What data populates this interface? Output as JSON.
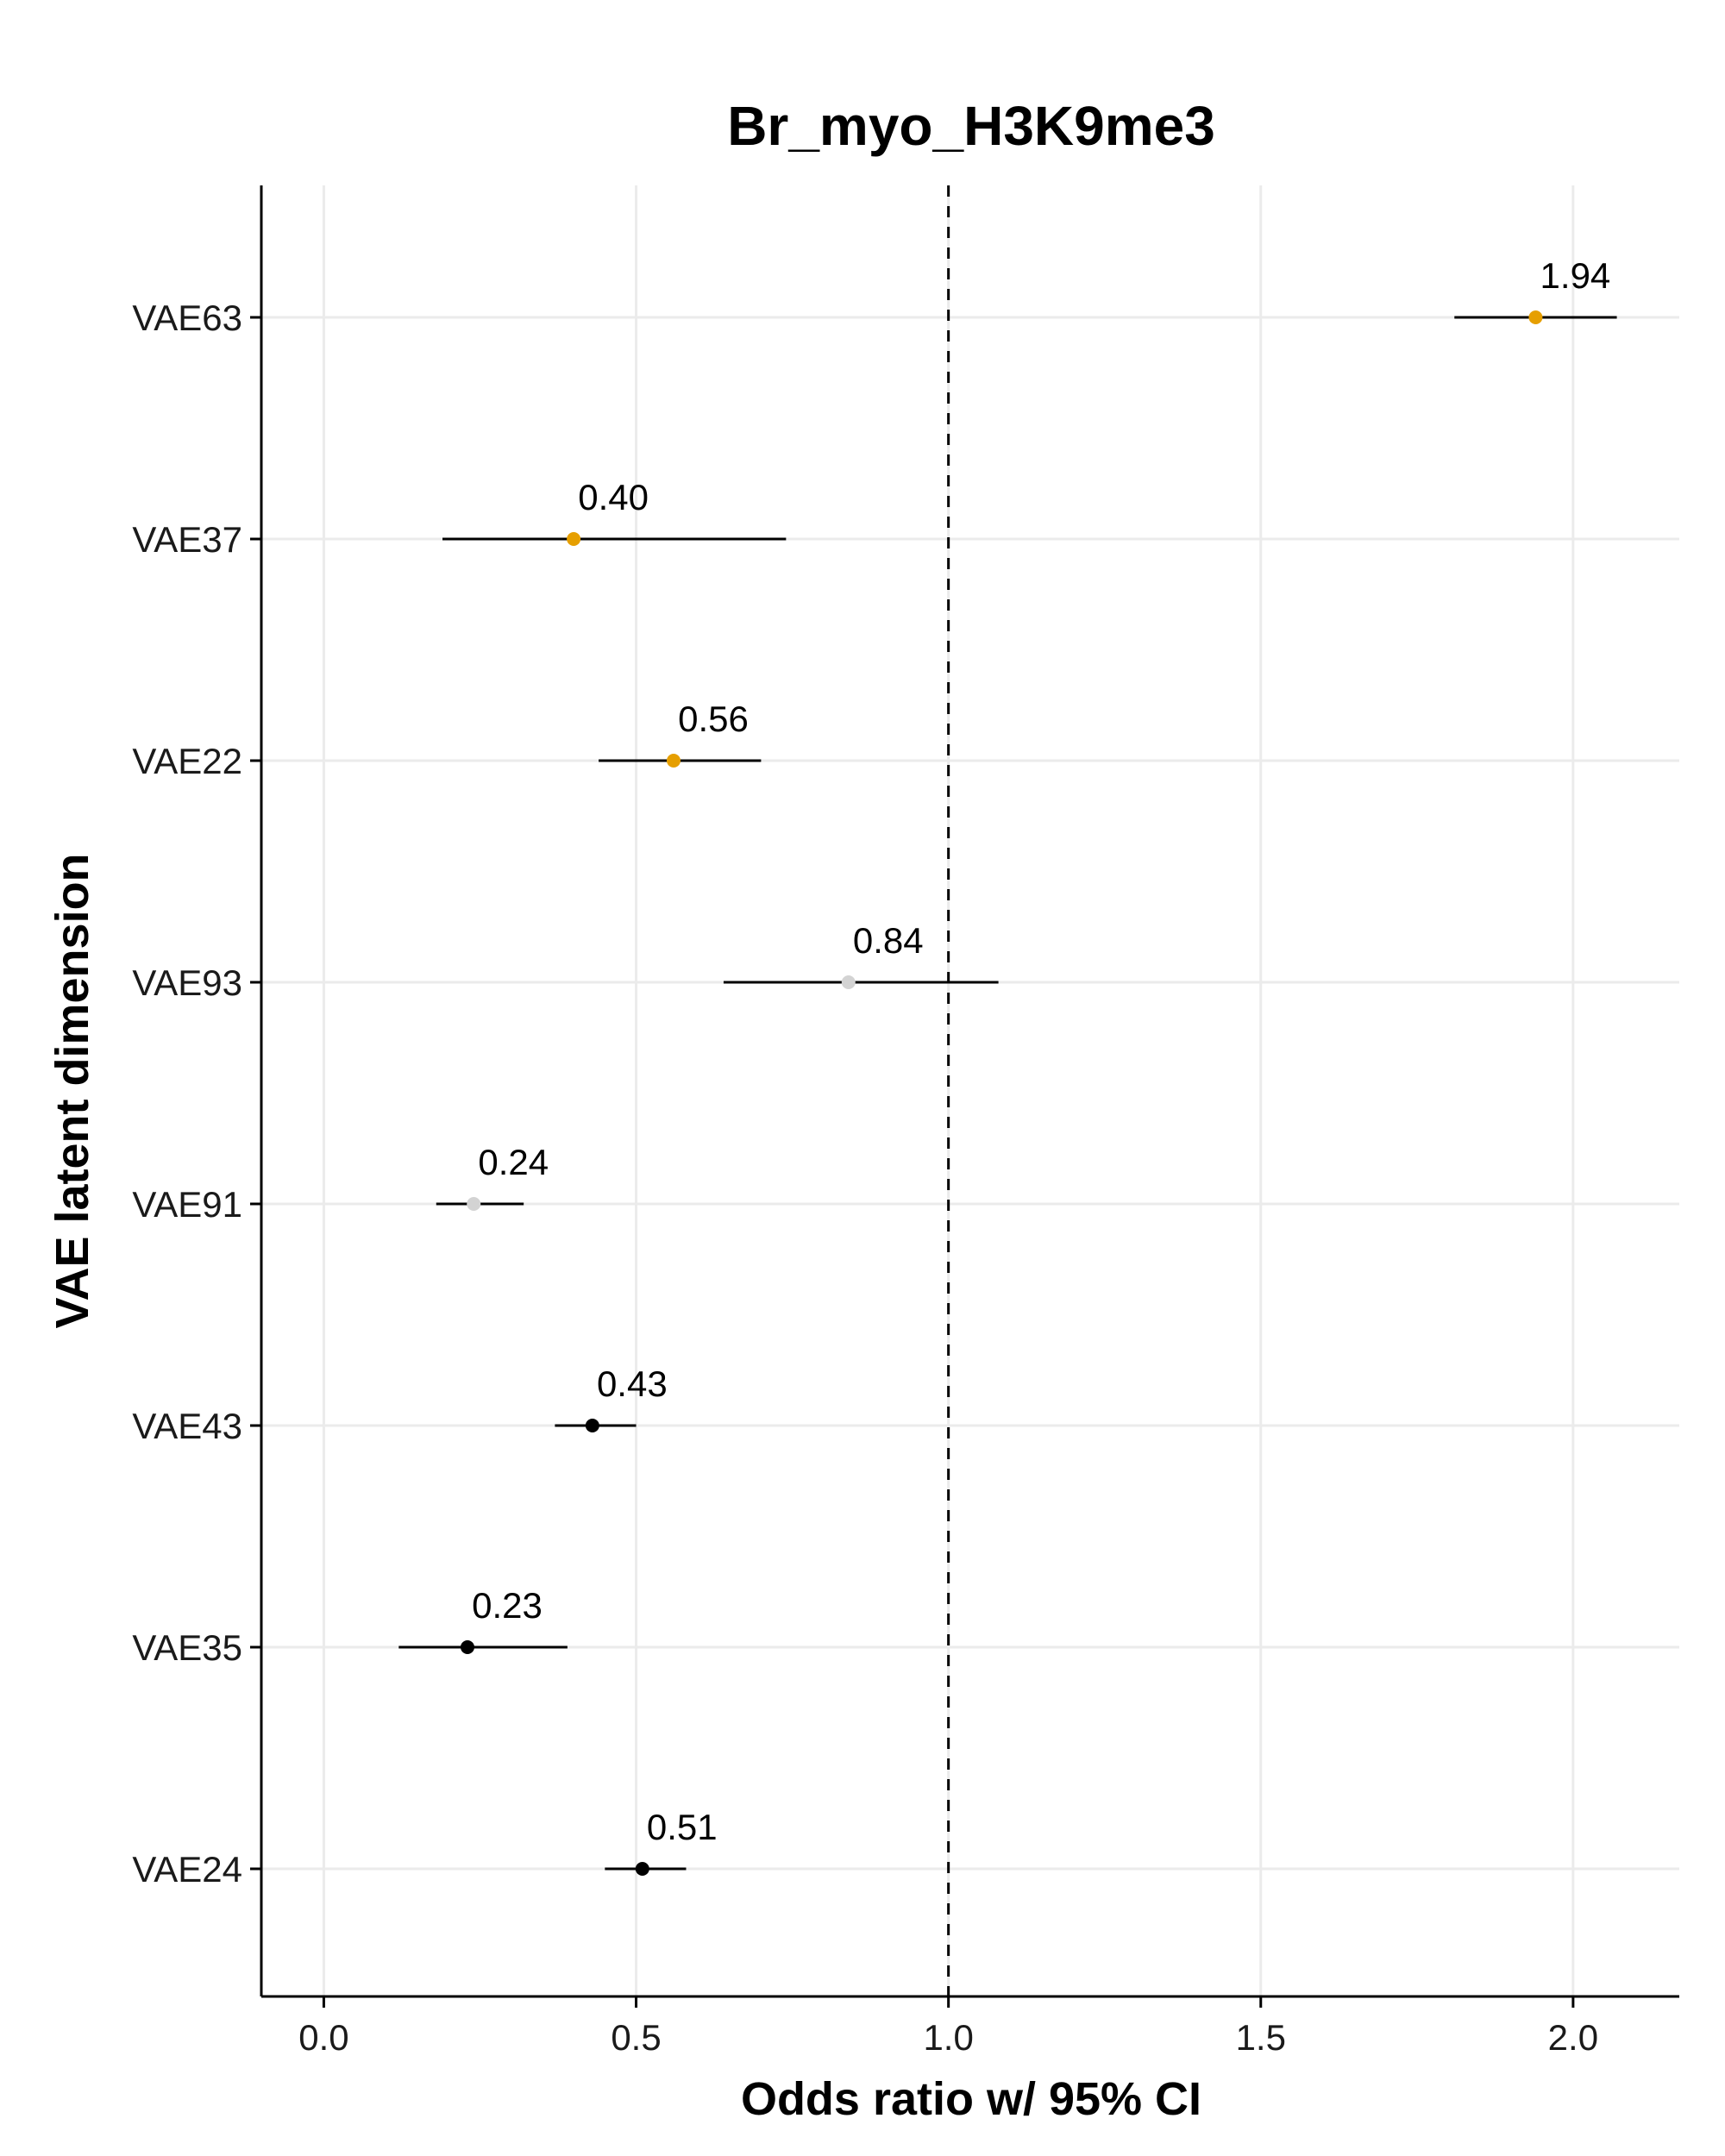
{
  "chart_data": {
    "type": "forest",
    "title": "Br_myo_H3K9me3",
    "xlabel": "Odds ratio w/ 95% CI",
    "ylabel": "VAE latent dimension",
    "xlim": [
      -0.1,
      2.17
    ],
    "x_ticks": [
      {
        "value": 0.0,
        "label": "0.0"
      },
      {
        "value": 0.5,
        "label": "0.5"
      },
      {
        "value": 1.0,
        "label": "1.0"
      },
      {
        "value": 1.5,
        "label": "1.5"
      },
      {
        "value": 2.0,
        "label": "2.0"
      }
    ],
    "reference_line": 1.0,
    "grid": true,
    "rows": [
      {
        "name": "VAE63",
        "or": 1.94,
        "lower": 1.81,
        "upper": 2.07,
        "label": "1.94",
        "color": "#E69F00"
      },
      {
        "name": "VAE37",
        "or": 0.4,
        "lower": 0.19,
        "upper": 0.74,
        "label": "0.40",
        "color": "#E69F00"
      },
      {
        "name": "VAE22",
        "or": 0.56,
        "lower": 0.44,
        "upper": 0.7,
        "label": "0.56",
        "color": "#E69F00"
      },
      {
        "name": "VAE93",
        "or": 0.84,
        "lower": 0.64,
        "upper": 1.08,
        "label": "0.84",
        "color": "#D3D3D3"
      },
      {
        "name": "VAE91",
        "or": 0.24,
        "lower": 0.18,
        "upper": 0.32,
        "label": "0.24",
        "color": "#D3D3D3"
      },
      {
        "name": "VAE43",
        "or": 0.43,
        "lower": 0.37,
        "upper": 0.5,
        "label": "0.43",
        "color": "#000000"
      },
      {
        "name": "VAE35",
        "or": 0.23,
        "lower": 0.12,
        "upper": 0.39,
        "label": "0.23",
        "color": "#000000"
      },
      {
        "name": "VAE24",
        "or": 0.51,
        "lower": 0.45,
        "upper": 0.58,
        "label": "0.51",
        "color": "#000000"
      }
    ]
  }
}
